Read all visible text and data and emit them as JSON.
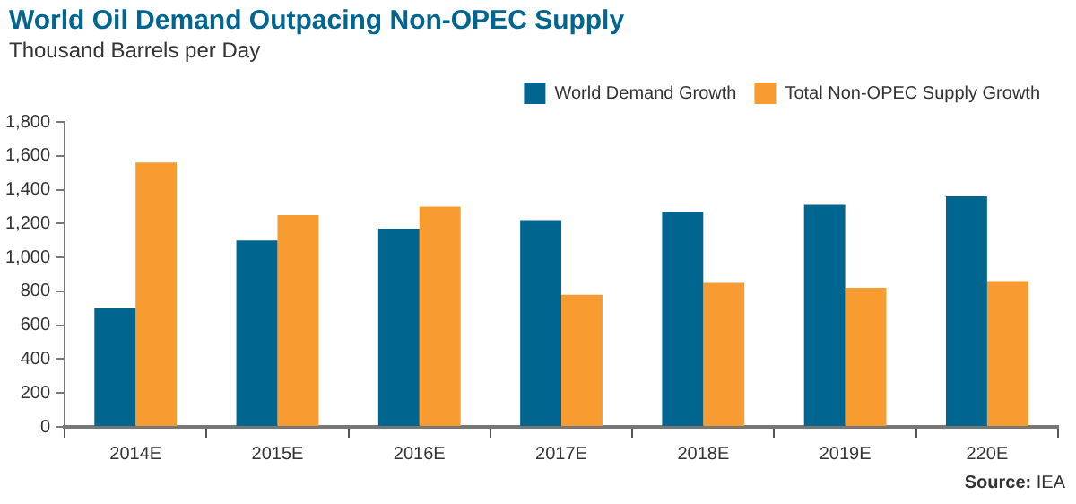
{
  "chart_data": {
    "type": "bar",
    "title": "World Oil Demand Outpacing Non-OPEC Supply",
    "subtitle": "Thousand Barrels per Day",
    "categories": [
      "2014E",
      "2015E",
      "2016E",
      "2017E",
      "2018E",
      "2019E",
      "220E"
    ],
    "series": [
      {
        "name": "World Demand Growth",
        "color": "#00668f",
        "values": [
          700,
          1100,
          1170,
          1220,
          1270,
          1310,
          1360
        ]
      },
      {
        "name": "Total Non-OPEC Supply Growth",
        "color": "#f89c31",
        "values": [
          1560,
          1250,
          1300,
          780,
          850,
          820,
          860
        ]
      }
    ],
    "ylim": [
      0,
      1800
    ],
    "yticks": [
      0,
      200,
      400,
      600,
      800,
      {
        "value": 1000,
        "label": "1,000"
      },
      {
        "value": 1200,
        "label": "1,200"
      },
      {
        "value": 1400,
        "label": "1,400"
      },
      {
        "value": 1600,
        "label": "1,600"
      },
      {
        "value": 1800,
        "label": "1,800"
      }
    ],
    "grid": false,
    "legend": "top right",
    "annotations": [
      "Source: IEA"
    ]
  }
}
